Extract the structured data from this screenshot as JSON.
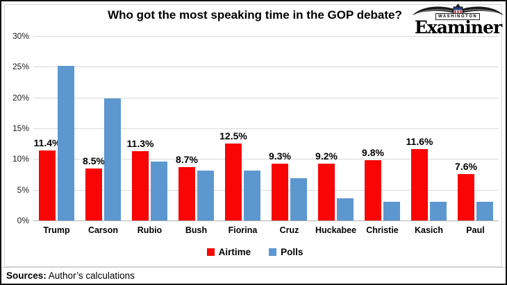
{
  "header": {
    "title": "Who got the most speaking time in the GOP debate?",
    "logo": {
      "kicker": "WASHINGTON",
      "name": "Examiner"
    }
  },
  "chart_data": {
    "type": "bar",
    "title": "Who got the most speaking time in the GOP debate?",
    "categories": [
      "Trump",
      "Carson",
      "Rubio",
      "Bush",
      "Fiorina",
      "Cruz",
      "Huckabee",
      "Christie",
      "Kasich",
      "Paul"
    ],
    "series": [
      {
        "name": "Airtime",
        "color": "#f90505",
        "values": [
          11.4,
          8.5,
          11.3,
          8.7,
          12.5,
          9.3,
          9.2,
          9.8,
          11.6,
          7.6
        ],
        "data_labels": [
          "11.4%",
          "8.5%",
          "11.3%",
          "8.7%",
          "12.5%",
          "9.3%",
          "9.2%",
          "9.8%",
          "11.6%",
          "7.6%"
        ]
      },
      {
        "name": "Polls",
        "color": "#5d97d0",
        "values": [
          25.2,
          19.8,
          9.6,
          8.1,
          8.1,
          6.9,
          3.6,
          3.1,
          3.1,
          3.1
        ],
        "data_labels": null
      }
    ],
    "ylim": [
      0,
      30
    ],
    "yticks": [
      0,
      5,
      10,
      15,
      20,
      25,
      30
    ],
    "ytick_labels": [
      "0%",
      "5%",
      "10%",
      "15%",
      "20%",
      "25%",
      "30%"
    ],
    "grid": true,
    "legend_position": "bottom"
  },
  "legend": {
    "items": [
      {
        "label": "Airtime",
        "color": "#f90505"
      },
      {
        "label": "Polls",
        "color": "#5d97d0"
      }
    ]
  },
  "footer": {
    "sources_label": "Sources:",
    "sources_text": " Author’s calculations"
  }
}
